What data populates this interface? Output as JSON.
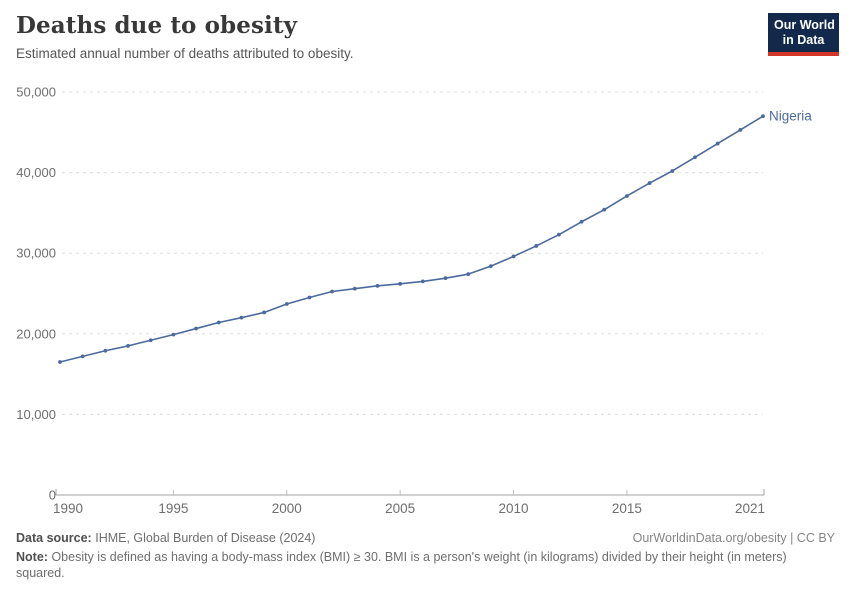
{
  "header": {
    "title": "Deaths due to obesity",
    "subtitle": "Estimated annual number of deaths attributed to obesity.",
    "logo": {
      "line1": "Our World",
      "line2": "in Data",
      "bg_color": "#12294b",
      "accent_color": "#d4362a"
    }
  },
  "chart_data": {
    "type": "line",
    "title": "Deaths due to obesity",
    "subtitle": "Estimated annual number of deaths attributed to obesity.",
    "grid": "horizontal-dashed",
    "legend_position": "end-of-line-label",
    "xlim": [
      1990,
      2021
    ],
    "ylim": [
      0,
      50000
    ],
    "x": [
      1990,
      1991,
      1992,
      1993,
      1994,
      1995,
      1996,
      1997,
      1998,
      1999,
      2000,
      2001,
      2002,
      2003,
      2004,
      2005,
      2006,
      2007,
      2008,
      2009,
      2010,
      2011,
      2012,
      2013,
      2014,
      2015,
      2016,
      2017,
      2018,
      2019,
      2020,
      2021
    ],
    "series": [
      {
        "name": "Nigeria",
        "color": "#4c6a9c",
        "values": [
          16500,
          17200,
          17900,
          18500,
          19200,
          19900,
          20650,
          21400,
          22000,
          22650,
          23700,
          24500,
          25250,
          25600,
          25950,
          26200,
          26500,
          26900,
          27400,
          28400,
          29600,
          30900,
          32300,
          33900,
          35400,
          37100,
          38700,
          40200,
          41900,
          43600,
          45300,
          47000
        ]
      }
    ],
    "xticks": [
      {
        "year": 1990,
        "label": "1990"
      },
      {
        "year": 1995,
        "label": "1995"
      },
      {
        "year": 2000,
        "label": "2000"
      },
      {
        "year": 2005,
        "label": "2005"
      },
      {
        "year": 2010,
        "label": "2010"
      },
      {
        "year": 2015,
        "label": "2015"
      },
      {
        "year": 2021,
        "label": "2021"
      }
    ],
    "yticks": [
      {
        "value": 0,
        "label": "0"
      },
      {
        "value": 10000,
        "label": "10,000"
      },
      {
        "value": 20000,
        "label": "20,000"
      },
      {
        "value": 30000,
        "label": "30,000"
      },
      {
        "value": 40000,
        "label": "40,000"
      },
      {
        "value": 50000,
        "label": "50,000"
      }
    ],
    "colors": {
      "gridline": "#dedede",
      "axis": "#a3a3a3",
      "tick_text": "#6e6e6e"
    }
  },
  "footer": {
    "source_label": "Data source:",
    "source_text": "IHME, Global Burden of Disease (2024)",
    "link": "OurWorldinData.org/obesity | CC BY",
    "note_label": "Note:",
    "note_text": "Obesity is defined as having a body-mass index (BMI) ≥ 30. BMI is a person's weight (in kilograms) divided by their height (in meters) squared."
  }
}
